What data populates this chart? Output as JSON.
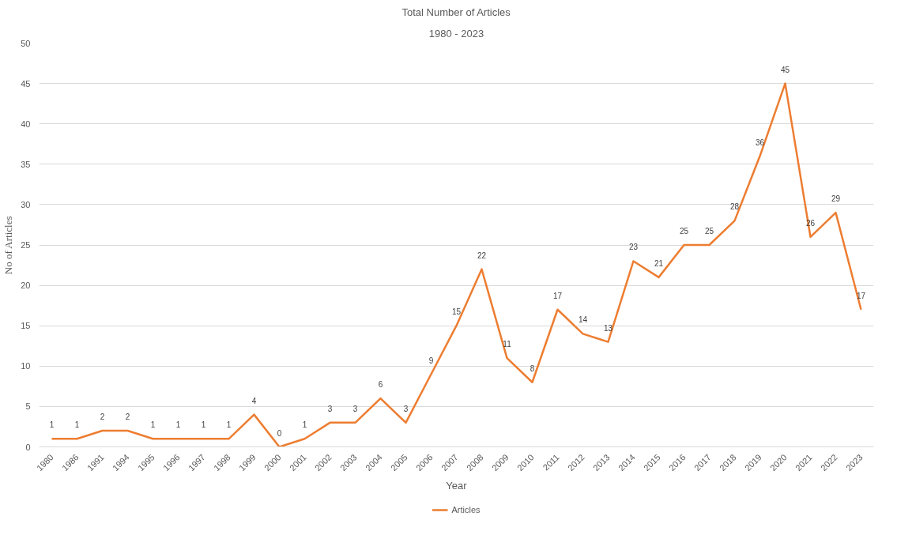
{
  "chart_data": {
    "type": "line",
    "title": "Total Number of Articles",
    "subtitle": "1980 - 2023",
    "xlabel": "Year",
    "ylabel": "No of Articles",
    "categories": [
      "1980",
      "1986",
      "1991",
      "1994",
      "1995",
      "1996",
      "1997",
      "1998",
      "1999",
      "2000",
      "2001",
      "2002",
      "2003",
      "2004",
      "2005",
      "2006",
      "2007",
      "2008",
      "2009",
      "2010",
      "2011",
      "2012",
      "2013",
      "2014",
      "2015",
      "2016",
      "2017",
      "2018",
      "2019",
      "2020",
      "2021",
      "2022",
      "2023"
    ],
    "series": [
      {
        "name": "Articles",
        "color": "#ed7d31",
        "values": [
          1,
          1,
          2,
          2,
          1,
          1,
          1,
          1,
          4,
          0,
          1,
          3,
          3,
          6,
          3,
          9,
          15,
          22,
          11,
          8,
          17,
          14,
          13,
          23,
          21,
          25,
          25,
          28,
          36,
          45,
          26,
          29,
          17
        ]
      }
    ],
    "ylim": [
      0,
      50
    ],
    "yticks": [
      0,
      5,
      10,
      15,
      20,
      25,
      30,
      35,
      40,
      45,
      50
    ],
    "grid": "y",
    "legend": "bottom",
    "data_labels": true,
    "marker": "none",
    "line_style": "solid"
  }
}
